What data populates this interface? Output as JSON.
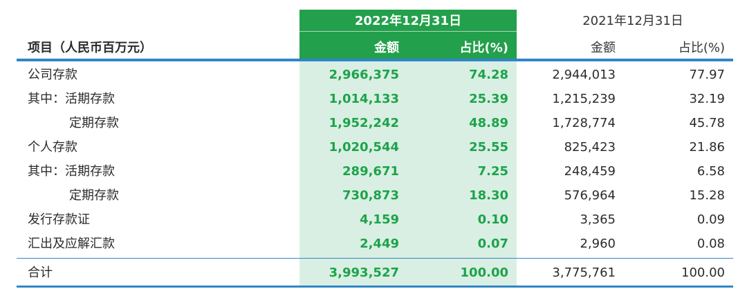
{
  "table": {
    "item_header": "项目（人民币百万元）",
    "period_2022": "2022年12月31日",
    "period_2021": "2021年12月31日",
    "amount_header": "金额",
    "share_header": "占比(%)",
    "rows": [
      {
        "label": "公司存款",
        "amount_2022": "2,966,375",
        "share_2022": "74.28",
        "amount_2021": "2,944,013",
        "share_2021": "77.97"
      },
      {
        "label": "其中：活期存款",
        "amount_2022": "1,014,133",
        "share_2022": "25.39",
        "amount_2021": "1,215,239",
        "share_2021": "32.19"
      },
      {
        "label": "定期存款",
        "amount_2022": "1,952,242",
        "share_2022": "48.89",
        "amount_2021": "1,728,774",
        "share_2021": "45.78"
      },
      {
        "label": "个人存款",
        "amount_2022": "1,020,544",
        "share_2022": "25.55",
        "amount_2021": "825,423",
        "share_2021": "21.86"
      },
      {
        "label": "其中：活期存款",
        "amount_2022": "289,671",
        "share_2022": "7.25",
        "amount_2021": "248,459",
        "share_2021": "6.58"
      },
      {
        "label": "定期存款",
        "amount_2022": "730,873",
        "share_2022": "18.30",
        "amount_2021": "576,964",
        "share_2021": "15.28"
      },
      {
        "label": "发行存款证",
        "amount_2022": "4,159",
        "share_2022": "0.10",
        "amount_2021": "3,365",
        "share_2021": "0.09"
      },
      {
        "label": "汇出及应解汇款",
        "amount_2022": "2,449",
        "share_2022": "0.07",
        "amount_2021": "2,960",
        "share_2021": "0.08"
      }
    ],
    "total": {
      "label": "合计",
      "amount_2022": "3,993,527",
      "share_2022": "100.00",
      "amount_2021": "3,775,761",
      "share_2021": "100.00"
    }
  }
}
